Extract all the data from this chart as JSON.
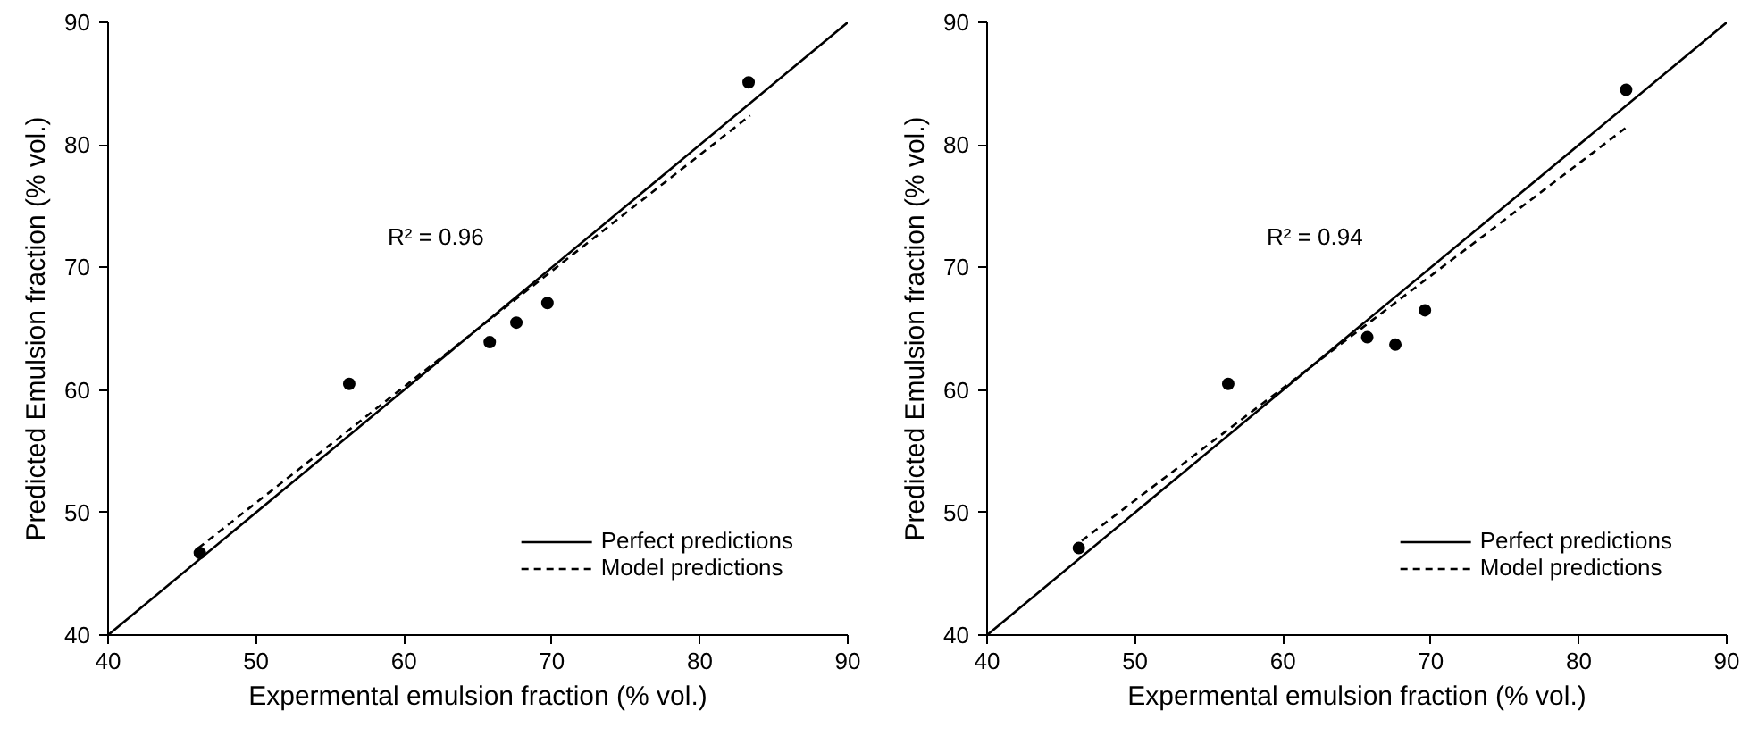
{
  "chart_data": [
    {
      "type": "scatter",
      "xlabel": "Expermental emulsion fraction (% vol.)",
      "ylabel": "Predicted Emulsion fraction (% vol.)",
      "xlim": [
        40,
        90
      ],
      "ylim": [
        40,
        90
      ],
      "xticks": [
        40,
        50,
        60,
        70,
        80,
        90
      ],
      "yticks": [
        40,
        50,
        60,
        70,
        80,
        90
      ],
      "grid": false,
      "legend": "bottom right",
      "series": [
        {
          "color": "#000000",
          "marker": "circle",
          "x": [
            46.2,
            56.3,
            65.8,
            67.6,
            69.7,
            83.3
          ],
          "values": [
            46.7,
            60.5,
            63.9,
            65.5,
            67.1,
            85.1
          ]
        },
        {
          "type": "line",
          "name": "Perfect predictions",
          "color": "#000000",
          "line_style": "solid",
          "x": [
            40,
            90
          ],
          "values": [
            40,
            90
          ]
        },
        {
          "type": "line",
          "name": "Model predictions",
          "color": "#000000",
          "line_style": "dashed",
          "x": [
            46.1,
            83.4
          ],
          "values": [
            47.1,
            82.4
          ]
        }
      ],
      "annotations": [
        "R² = 0.96"
      ]
    },
    {
      "type": "scatter",
      "xlabel": "Expermental emulsion fraction (% vol.)",
      "ylabel": "Predicted Emulsion fraction (% vol.)",
      "xlim": [
        40,
        90
      ],
      "ylim": [
        40,
        90
      ],
      "xticks": [
        40,
        50,
        60,
        70,
        80,
        90
      ],
      "yticks": [
        40,
        50,
        60,
        70,
        80,
        90
      ],
      "grid": false,
      "legend": "bottom right",
      "series": [
        {
          "color": "#000000",
          "marker": "circle",
          "x": [
            46.2,
            56.3,
            65.7,
            67.6,
            69.6,
            83.2
          ],
          "values": [
            47.1,
            60.5,
            64.3,
            63.7,
            66.5,
            84.5
          ]
        },
        {
          "type": "line",
          "name": "Perfect predictions",
          "color": "#000000",
          "line_style": "solid",
          "x": [
            40,
            90
          ],
          "values": [
            40,
            90
          ]
        },
        {
          "type": "line",
          "name": "Model predictions",
          "color": "#000000",
          "line_style": "dashed",
          "x": [
            46.4,
            83.4
          ],
          "values": [
            47.7,
            81.6
          ]
        }
      ],
      "annotations": [
        "R² = 0.94"
      ]
    }
  ]
}
